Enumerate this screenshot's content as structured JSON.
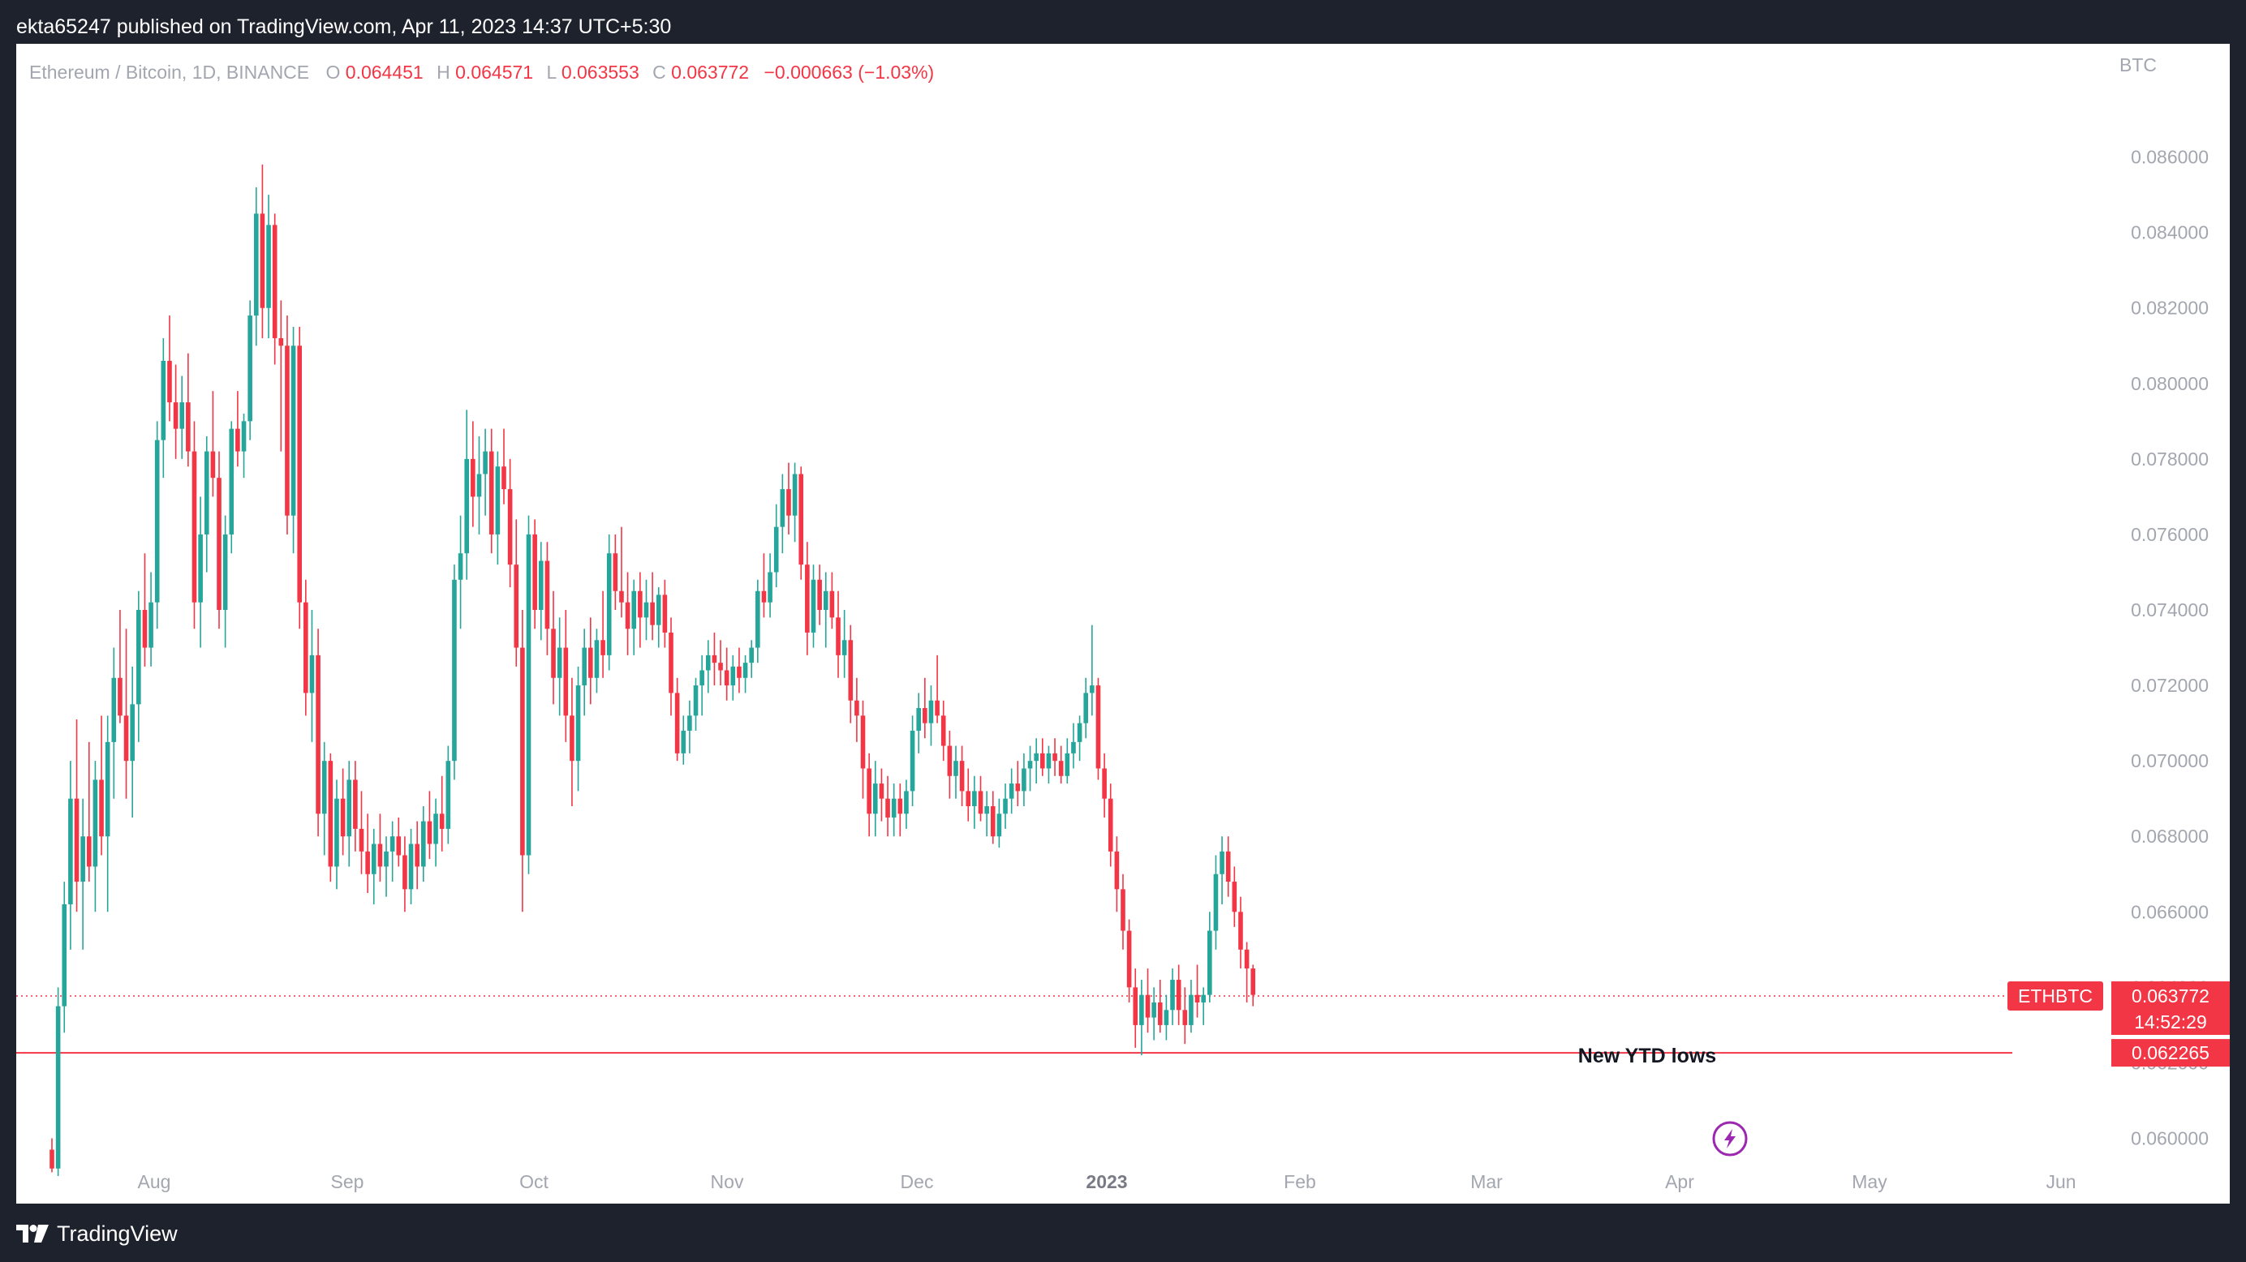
{
  "header": {
    "publisher_line": "ekta65247 published on TradingView.com, Apr 11, 2023 14:37 UTC+5:30"
  },
  "footer": {
    "brand": "TradingView"
  },
  "legend": {
    "symbol": "Ethereum / Bitcoin, 1D, BINANCE",
    "o_label": "O",
    "o_value": "0.064451",
    "h_label": "H",
    "h_value": "0.064571",
    "l_label": "L",
    "l_value": "0.063553",
    "c_label": "C",
    "c_value": "0.063772",
    "change": "−0.000663 (−1.03%)"
  },
  "currency_label": "BTC",
  "price_tag": {
    "symbol": "ETHBTC",
    "price": "0.063772",
    "countdown": "14:52:29"
  },
  "level_tag": "0.062265",
  "annotation": "New YTD lows",
  "colors": {
    "up": "#26a69a",
    "down": "#f23645",
    "grid_text": "#a3a6af",
    "level_line": "#f23645",
    "flash_icon": "#9c27b0"
  },
  "chart_data": {
    "type": "candlestick",
    "title": "Ethereum / Bitcoin, 1D, BINANCE",
    "y_unit": "BTC",
    "ylim": [
      0.0587,
      0.089
    ],
    "y_ticks": [
      "0.060000",
      "0.062000",
      "0.064000",
      "0.066000",
      "0.068000",
      "0.070000",
      "0.072000",
      "0.074000",
      "0.076000",
      "0.078000",
      "0.080000",
      "0.082000",
      "0.084000",
      "0.086000"
    ],
    "x_ticks": [
      "Aug",
      "Sep",
      "Oct",
      "Nov",
      "Dec",
      "2023",
      "Feb",
      "Mar",
      "Apr",
      "May",
      "Jun"
    ],
    "horizontal_lines": [
      {
        "value": 0.062265,
        "style": "solid"
      },
      {
        "value": 0.063772,
        "style": "dotted"
      }
    ],
    "candles": [
      [
        0.0597,
        0.06,
        0.0591,
        0.0592
      ],
      [
        0.0592,
        0.064,
        0.059,
        0.0635
      ],
      [
        0.0635,
        0.0668,
        0.0628,
        0.0662
      ],
      [
        0.0662,
        0.07,
        0.065,
        0.069
      ],
      [
        0.069,
        0.0711,
        0.066,
        0.0668
      ],
      [
        0.0668,
        0.069,
        0.065,
        0.068
      ],
      [
        0.068,
        0.0705,
        0.0668,
        0.0672
      ],
      [
        0.0672,
        0.07,
        0.066,
        0.0695
      ],
      [
        0.0695,
        0.0712,
        0.0675,
        0.068
      ],
      [
        0.068,
        0.0712,
        0.066,
        0.0705
      ],
      [
        0.0705,
        0.073,
        0.069,
        0.0722
      ],
      [
        0.0722,
        0.074,
        0.071,
        0.0712
      ],
      [
        0.0712,
        0.0735,
        0.069,
        0.07
      ],
      [
        0.07,
        0.0725,
        0.0685,
        0.0715
      ],
      [
        0.0715,
        0.0745,
        0.0705,
        0.074
      ],
      [
        0.074,
        0.0755,
        0.0725,
        0.073
      ],
      [
        0.073,
        0.075,
        0.0725,
        0.0742
      ],
      [
        0.0742,
        0.079,
        0.0735,
        0.0785
      ],
      [
        0.0785,
        0.0812,
        0.0775,
        0.0806
      ],
      [
        0.0806,
        0.0818,
        0.079,
        0.0795
      ],
      [
        0.0795,
        0.0805,
        0.078,
        0.0788
      ],
      [
        0.0788,
        0.0802,
        0.078,
        0.0795
      ],
      [
        0.0795,
        0.0808,
        0.0778,
        0.0782
      ],
      [
        0.0782,
        0.079,
        0.0735,
        0.0742
      ],
      [
        0.0742,
        0.077,
        0.073,
        0.076
      ],
      [
        0.076,
        0.0786,
        0.075,
        0.0782
      ],
      [
        0.0782,
        0.0798,
        0.077,
        0.0775
      ],
      [
        0.0775,
        0.0782,
        0.0735,
        0.074
      ],
      [
        0.074,
        0.0765,
        0.073,
        0.076
      ],
      [
        0.076,
        0.079,
        0.0755,
        0.0788
      ],
      [
        0.0788,
        0.0798,
        0.0778,
        0.0782
      ],
      [
        0.0782,
        0.0792,
        0.0775,
        0.079
      ],
      [
        0.079,
        0.0822,
        0.0785,
        0.0818
      ],
      [
        0.0818,
        0.0852,
        0.081,
        0.0845
      ],
      [
        0.0845,
        0.0858,
        0.0812,
        0.082
      ],
      [
        0.082,
        0.085,
        0.0812,
        0.0842
      ],
      [
        0.0842,
        0.0845,
        0.0805,
        0.0812
      ],
      [
        0.0812,
        0.0822,
        0.0782,
        0.081
      ],
      [
        0.081,
        0.0818,
        0.076,
        0.0765
      ],
      [
        0.0765,
        0.0815,
        0.0755,
        0.081
      ],
      [
        0.081,
        0.0815,
        0.0735,
        0.0742
      ],
      [
        0.0742,
        0.0748,
        0.0712,
        0.0718
      ],
      [
        0.0718,
        0.074,
        0.0705,
        0.0728
      ],
      [
        0.0728,
        0.0735,
        0.068,
        0.0686
      ],
      [
        0.0686,
        0.0705,
        0.0675,
        0.07
      ],
      [
        0.07,
        0.0702,
        0.0668,
        0.0672
      ],
      [
        0.0672,
        0.0695,
        0.0666,
        0.069
      ],
      [
        0.069,
        0.0698,
        0.0675,
        0.068
      ],
      [
        0.068,
        0.07,
        0.0672,
        0.0695
      ],
      [
        0.0695,
        0.07,
        0.0676,
        0.0682
      ],
      [
        0.0682,
        0.0692,
        0.067,
        0.0676
      ],
      [
        0.0676,
        0.0686,
        0.0665,
        0.067
      ],
      [
        0.067,
        0.0682,
        0.0662,
        0.0678
      ],
      [
        0.0678,
        0.0686,
        0.0668,
        0.0672
      ],
      [
        0.0672,
        0.068,
        0.0664,
        0.0676
      ],
      [
        0.0676,
        0.0684,
        0.0668,
        0.068
      ],
      [
        0.068,
        0.0685,
        0.0672,
        0.0675
      ],
      [
        0.0675,
        0.068,
        0.066,
        0.0666
      ],
      [
        0.0666,
        0.0682,
        0.0662,
        0.0678
      ],
      [
        0.0678,
        0.0684,
        0.0666,
        0.0672
      ],
      [
        0.0672,
        0.0688,
        0.0668,
        0.0684
      ],
      [
        0.0684,
        0.0692,
        0.0674,
        0.0678
      ],
      [
        0.0678,
        0.069,
        0.0672,
        0.0686
      ],
      [
        0.0686,
        0.0696,
        0.0676,
        0.0682
      ],
      [
        0.0682,
        0.0704,
        0.0678,
        0.07
      ],
      [
        0.07,
        0.0752,
        0.0695,
        0.0748
      ],
      [
        0.0748,
        0.0765,
        0.0735,
        0.0755
      ],
      [
        0.0755,
        0.0793,
        0.0748,
        0.078
      ],
      [
        0.078,
        0.079,
        0.0762,
        0.077
      ],
      [
        0.077,
        0.0786,
        0.076,
        0.0776
      ],
      [
        0.0776,
        0.0788,
        0.0765,
        0.0782
      ],
      [
        0.0782,
        0.0788,
        0.0755,
        0.076
      ],
      [
        0.076,
        0.0782,
        0.0752,
        0.0778
      ],
      [
        0.0778,
        0.0788,
        0.0768,
        0.0772
      ],
      [
        0.0772,
        0.078,
        0.0746,
        0.0752
      ],
      [
        0.0752,
        0.0764,
        0.0725,
        0.073
      ],
      [
        0.073,
        0.074,
        0.066,
        0.0675
      ],
      [
        0.0675,
        0.0765,
        0.067,
        0.076
      ],
      [
        0.076,
        0.0764,
        0.0735,
        0.074
      ],
      [
        0.074,
        0.0758,
        0.0732,
        0.0753
      ],
      [
        0.0753,
        0.0758,
        0.0728,
        0.0735
      ],
      [
        0.0735,
        0.0745,
        0.0715,
        0.0722
      ],
      [
        0.0722,
        0.0738,
        0.0712,
        0.073
      ],
      [
        0.073,
        0.074,
        0.0705,
        0.0712
      ],
      [
        0.0712,
        0.0722,
        0.0688,
        0.07
      ],
      [
        0.07,
        0.0725,
        0.0692,
        0.072
      ],
      [
        0.072,
        0.0735,
        0.0712,
        0.073
      ],
      [
        0.073,
        0.0738,
        0.0715,
        0.0722
      ],
      [
        0.0722,
        0.0735,
        0.0718,
        0.0732
      ],
      [
        0.0732,
        0.0745,
        0.0722,
        0.0728
      ],
      [
        0.0728,
        0.076,
        0.0724,
        0.0755
      ],
      [
        0.0755,
        0.076,
        0.074,
        0.0745
      ],
      [
        0.0745,
        0.0762,
        0.0738,
        0.0742
      ],
      [
        0.0742,
        0.075,
        0.0728,
        0.0735
      ],
      [
        0.0735,
        0.0748,
        0.0728,
        0.0745
      ],
      [
        0.0745,
        0.075,
        0.073,
        0.0738
      ],
      [
        0.0738,
        0.0748,
        0.0732,
        0.0742
      ],
      [
        0.0742,
        0.075,
        0.0732,
        0.0736
      ],
      [
        0.0736,
        0.0746,
        0.073,
        0.0744
      ],
      [
        0.0744,
        0.0748,
        0.073,
        0.0734
      ],
      [
        0.0734,
        0.0738,
        0.0712,
        0.0718
      ],
      [
        0.0718,
        0.0722,
        0.07,
        0.0702
      ],
      [
        0.0702,
        0.0712,
        0.0699,
        0.0708
      ],
      [
        0.0708,
        0.0716,
        0.0702,
        0.0712
      ],
      [
        0.0712,
        0.0722,
        0.0708,
        0.072
      ],
      [
        0.072,
        0.0728,
        0.0712,
        0.0724
      ],
      [
        0.0724,
        0.0732,
        0.0718,
        0.0728
      ],
      [
        0.0728,
        0.0734,
        0.072,
        0.0726
      ],
      [
        0.0726,
        0.0732,
        0.072,
        0.0724
      ],
      [
        0.0724,
        0.073,
        0.0716,
        0.072
      ],
      [
        0.072,
        0.0728,
        0.0716,
        0.0725
      ],
      [
        0.0725,
        0.073,
        0.0718,
        0.0722
      ],
      [
        0.0722,
        0.0728,
        0.0718,
        0.0726
      ],
      [
        0.0726,
        0.0732,
        0.0722,
        0.073
      ],
      [
        0.073,
        0.0748,
        0.0726,
        0.0745
      ],
      [
        0.0745,
        0.0755,
        0.0738,
        0.0742
      ],
      [
        0.0742,
        0.0755,
        0.0738,
        0.075
      ],
      [
        0.075,
        0.0768,
        0.0746,
        0.0762
      ],
      [
        0.0762,
        0.0776,
        0.0755,
        0.0772
      ],
      [
        0.0772,
        0.0779,
        0.076,
        0.0765
      ],
      [
        0.0765,
        0.0779,
        0.0758,
        0.0776
      ],
      [
        0.0776,
        0.0778,
        0.0748,
        0.0752
      ],
      [
        0.0752,
        0.0758,
        0.0728,
        0.0734
      ],
      [
        0.0734,
        0.0752,
        0.073,
        0.0748
      ],
      [
        0.0748,
        0.0752,
        0.0736,
        0.074
      ],
      [
        0.074,
        0.075,
        0.073,
        0.0745
      ],
      [
        0.0745,
        0.075,
        0.0735,
        0.0738
      ],
      [
        0.0738,
        0.0745,
        0.0722,
        0.0728
      ],
      [
        0.0728,
        0.074,
        0.0722,
        0.0732
      ],
      [
        0.0732,
        0.0736,
        0.071,
        0.0716
      ],
      [
        0.0716,
        0.0722,
        0.0705,
        0.0712
      ],
      [
        0.0712,
        0.0716,
        0.069,
        0.0698
      ],
      [
        0.0698,
        0.0702,
        0.068,
        0.0686
      ],
      [
        0.0686,
        0.07,
        0.068,
        0.0694
      ],
      [
        0.0694,
        0.0698,
        0.0684,
        0.069
      ],
      [
        0.069,
        0.0696,
        0.068,
        0.0685
      ],
      [
        0.0685,
        0.0694,
        0.068,
        0.069
      ],
      [
        0.069,
        0.0694,
        0.068,
        0.0686
      ],
      [
        0.0686,
        0.0695,
        0.0682,
        0.0692
      ],
      [
        0.0692,
        0.0712,
        0.0688,
        0.0708
      ],
      [
        0.0708,
        0.0718,
        0.0702,
        0.0714
      ],
      [
        0.0714,
        0.0722,
        0.0706,
        0.071
      ],
      [
        0.071,
        0.072,
        0.0704,
        0.0716
      ],
      [
        0.0716,
        0.0728,
        0.071,
        0.0712
      ],
      [
        0.0712,
        0.0716,
        0.07,
        0.0704
      ],
      [
        0.0704,
        0.0708,
        0.069,
        0.0696
      ],
      [
        0.0696,
        0.0704,
        0.069,
        0.07
      ],
      [
        0.07,
        0.0704,
        0.0688,
        0.0692
      ],
      [
        0.0692,
        0.0698,
        0.0684,
        0.0688
      ],
      [
        0.0688,
        0.0696,
        0.0682,
        0.0692
      ],
      [
        0.0692,
        0.0696,
        0.0684,
        0.0686
      ],
      [
        0.0686,
        0.0692,
        0.068,
        0.0688
      ],
      [
        0.0688,
        0.0692,
        0.0678,
        0.068
      ],
      [
        0.068,
        0.069,
        0.0677,
        0.0686
      ],
      [
        0.0686,
        0.0694,
        0.0682,
        0.069
      ],
      [
        0.069,
        0.0698,
        0.0686,
        0.0694
      ],
      [
        0.0694,
        0.07,
        0.0688,
        0.0692
      ],
      [
        0.0692,
        0.0702,
        0.0688,
        0.0698
      ],
      [
        0.0698,
        0.0704,
        0.0692,
        0.07
      ],
      [
        0.07,
        0.0706,
        0.0694,
        0.0702
      ],
      [
        0.0702,
        0.0706,
        0.0696,
        0.0698
      ],
      [
        0.0698,
        0.0704,
        0.0694,
        0.0702
      ],
      [
        0.0702,
        0.0706,
        0.0696,
        0.07
      ],
      [
        0.07,
        0.0704,
        0.0694,
        0.0696
      ],
      [
        0.0696,
        0.0706,
        0.0694,
        0.0702
      ],
      [
        0.0702,
        0.071,
        0.0698,
        0.0705
      ],
      [
        0.0705,
        0.0712,
        0.07,
        0.071
      ],
      [
        0.071,
        0.0722,
        0.0706,
        0.0718
      ],
      [
        0.0718,
        0.0736,
        0.0712,
        0.072
      ],
      [
        0.072,
        0.0722,
        0.0695,
        0.0698
      ],
      [
        0.0698,
        0.0702,
        0.0685,
        0.069
      ],
      [
        0.069,
        0.0694,
        0.0672,
        0.0676
      ],
      [
        0.0676,
        0.068,
        0.066,
        0.0666
      ],
      [
        0.0666,
        0.067,
        0.065,
        0.0655
      ],
      [
        0.0655,
        0.0658,
        0.0636,
        0.064
      ],
      [
        0.064,
        0.0645,
        0.0624,
        0.063
      ],
      [
        0.063,
        0.0642,
        0.0622,
        0.0638
      ],
      [
        0.0638,
        0.0645,
        0.0628,
        0.0632
      ],
      [
        0.0632,
        0.064,
        0.0626,
        0.0636
      ],
      [
        0.0636,
        0.0642,
        0.0628,
        0.063
      ],
      [
        0.063,
        0.0638,
        0.0626,
        0.0634
      ],
      [
        0.0634,
        0.0645,
        0.063,
        0.0642
      ],
      [
        0.0642,
        0.0646,
        0.063,
        0.0634
      ],
      [
        0.0634,
        0.064,
        0.0625,
        0.063
      ],
      [
        0.063,
        0.0642,
        0.0628,
        0.0638
      ],
      [
        0.0638,
        0.0646,
        0.0632,
        0.0636
      ],
      [
        0.0636,
        0.064,
        0.063,
        0.0638
      ],
      [
        0.0638,
        0.066,
        0.0636,
        0.0655
      ],
      [
        0.0655,
        0.0675,
        0.065,
        0.067
      ],
      [
        0.067,
        0.068,
        0.0662,
        0.0676
      ],
      [
        0.0676,
        0.068,
        0.0664,
        0.0668
      ],
      [
        0.0668,
        0.0672,
        0.0656,
        0.066
      ],
      [
        0.066,
        0.0664,
        0.0645,
        0.065
      ],
      [
        0.065,
        0.0652,
        0.0636,
        0.0645
      ],
      [
        0.0645,
        0.0646,
        0.0635,
        0.0638
      ]
    ]
  }
}
